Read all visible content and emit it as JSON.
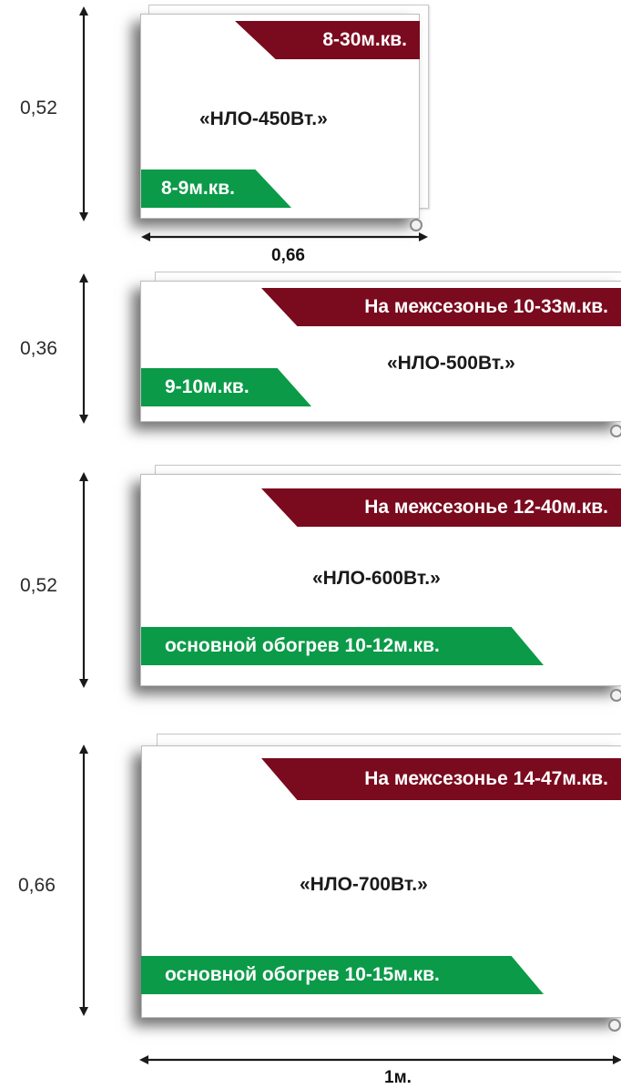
{
  "panels": [
    {
      "height_label": "0,52",
      "width_label": "0,66",
      "model": "«НЛО-450Вт.»",
      "red_tag": "8-30м.кв.",
      "green_tag": "8-9м.кв."
    },
    {
      "height_label": "0,36",
      "model": "«НЛО-500Вт.»",
      "red_tag": "На межсезонье 10-33м.кв.",
      "green_tag": "9-10м.кв."
    },
    {
      "height_label": "0,52",
      "model": "«НЛО-600Вт.»",
      "red_tag": "На межсезонье 12-40м.кв.",
      "green_tag": "основной обогрев 10-12м.кв."
    },
    {
      "height_label": "0,66",
      "width_label": "1м.",
      "model": "«НЛО-700Вт.»",
      "red_tag": "На межсезонье 14-47м.кв.",
      "green_tag": "основной обогрев 10-15м.кв."
    }
  ],
  "colors": {
    "red_tag": "#7a0a1e",
    "green_tag": "#0b9a48",
    "arrows": "#1a1a1a"
  }
}
